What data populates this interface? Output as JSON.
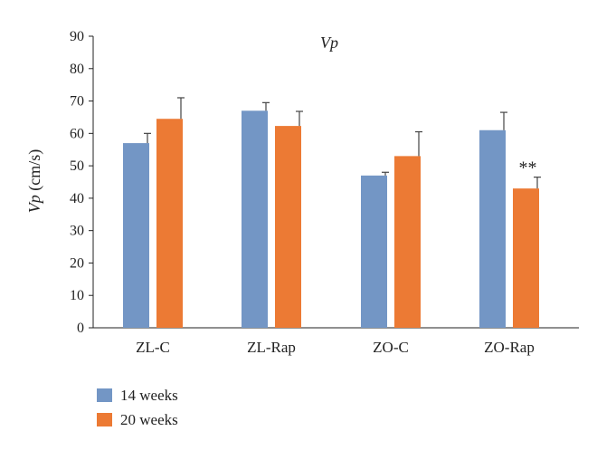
{
  "chart_data": {
    "type": "bar",
    "title": "Vp",
    "ylabel": {
      "italic": "Vp",
      "rest": " (cm/s)"
    },
    "xlabel": "",
    "ylim": [
      0,
      90
    ],
    "yticks": [
      0,
      10,
      20,
      30,
      40,
      50,
      60,
      70,
      80,
      90
    ],
    "categories": [
      "ZL-C",
      "ZL-Rap",
      "ZO-C",
      "ZO-Rap"
    ],
    "series": [
      {
        "name": "14 weeks",
        "color": "#7396c5",
        "values": [
          57,
          67,
          47,
          61
        ],
        "errors": [
          3,
          2.5,
          1,
          5.5
        ]
      },
      {
        "name": "20 weeks",
        "color": "#ec7a34",
        "values": [
          64.5,
          62.3,
          53,
          43
        ],
        "errors": [
          6.5,
          4.5,
          7.5,
          3.5
        ]
      }
    ],
    "annotations": [
      {
        "category": "ZO-Rap",
        "series": "20 weeks",
        "text": "**"
      }
    ],
    "legend_position": "bottom-left",
    "grid": false
  }
}
